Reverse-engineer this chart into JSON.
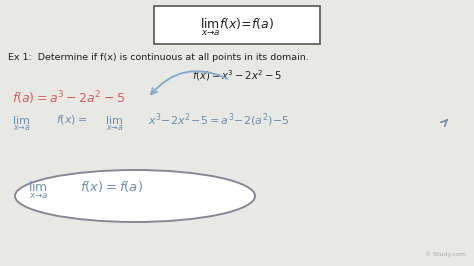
{
  "bg_color": "#e8e8e4",
  "pink_color": "#d96060",
  "blue_color": "#7090b0",
  "dark_color": "#222222",
  "box_edge_color": "#555555",
  "ellipse_color": "#888899",
  "arrow_color": "#8aaacc",
  "watermark": "© Study.com",
  "watermark_color": "#aaaaaa"
}
